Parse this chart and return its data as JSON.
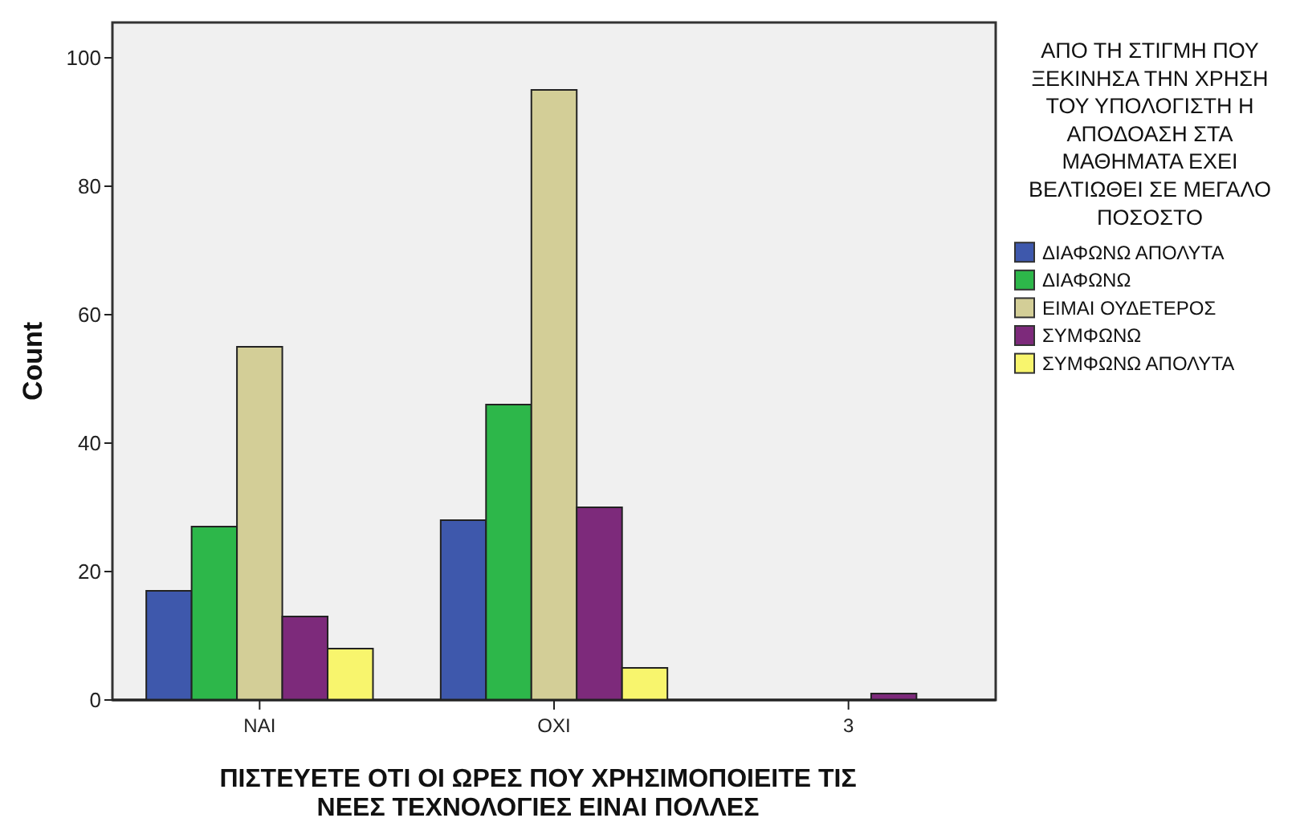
{
  "chart_data": {
    "type": "bar",
    "xlabel": "ΠΙΣΤΕΥΕΤΕ ΟΤΙ ΟΙ ΩΡΕΣ ΠΟΥ ΧΡΗΣΙΜΟΠΟΙΕΙΤΕ ΤΙΣ ΝΕΕΣ ΤΕΧΝΟΛΟΓΙΕΣ ΕΙΝΑΙ ΠΟΛΛΕΣ",
    "ylabel": "Count",
    "legend_title": "ΑΠΟ ΤΗ ΣΤΙΓΜΗ ΠΟΥ ΞΕΚΙΝΗΣΑ ΤΗΝ ΧΡΗΣΗ ΤΟΥ ΥΠΟΛΟΓΙΣΤΗ Η ΑΠΟΔΟΑΣΗ ΣΤΑ ΜΑΘΗΜΑΤΑ ΕΧΕΙ ΒΕΛΤΙΩΘΕΙ ΣΕ ΜΕΓΑΛΟ ΠΟΣΟΣΤΟ",
    "categories": [
      "ΝΑΙ",
      "ΟΧΙ",
      "3"
    ],
    "series": [
      {
        "name": "ΔΙΑΦΩΝΩ ΑΠΟΛΥΤΑ",
        "color": "#3e58ac",
        "values": [
          17,
          28,
          null
        ]
      },
      {
        "name": "ΔΙΑΦΩΝΩ",
        "color": "#2db74a",
        "values": [
          27,
          46,
          null
        ]
      },
      {
        "name": "ΕΙΜΑΙ ΟΥΔΕΤΕΡΟΣ",
        "color": "#d3ce97",
        "values": [
          55,
          95,
          null
        ]
      },
      {
        "name": "ΣΥΜΦΩΝΩ",
        "color": "#7d2a7b",
        "values": [
          13,
          30,
          1
        ]
      },
      {
        "name": "ΣΥΜΦΩΝΩ ΑΠΟΛΥΤΑ",
        "color": "#f8f56d",
        "values": [
          8,
          5,
          null
        ]
      }
    ],
    "ylim": [
      0,
      105.5
    ],
    "yticks": [
      0,
      20,
      40,
      60,
      80,
      100
    ],
    "grid": false,
    "legend": "right"
  }
}
